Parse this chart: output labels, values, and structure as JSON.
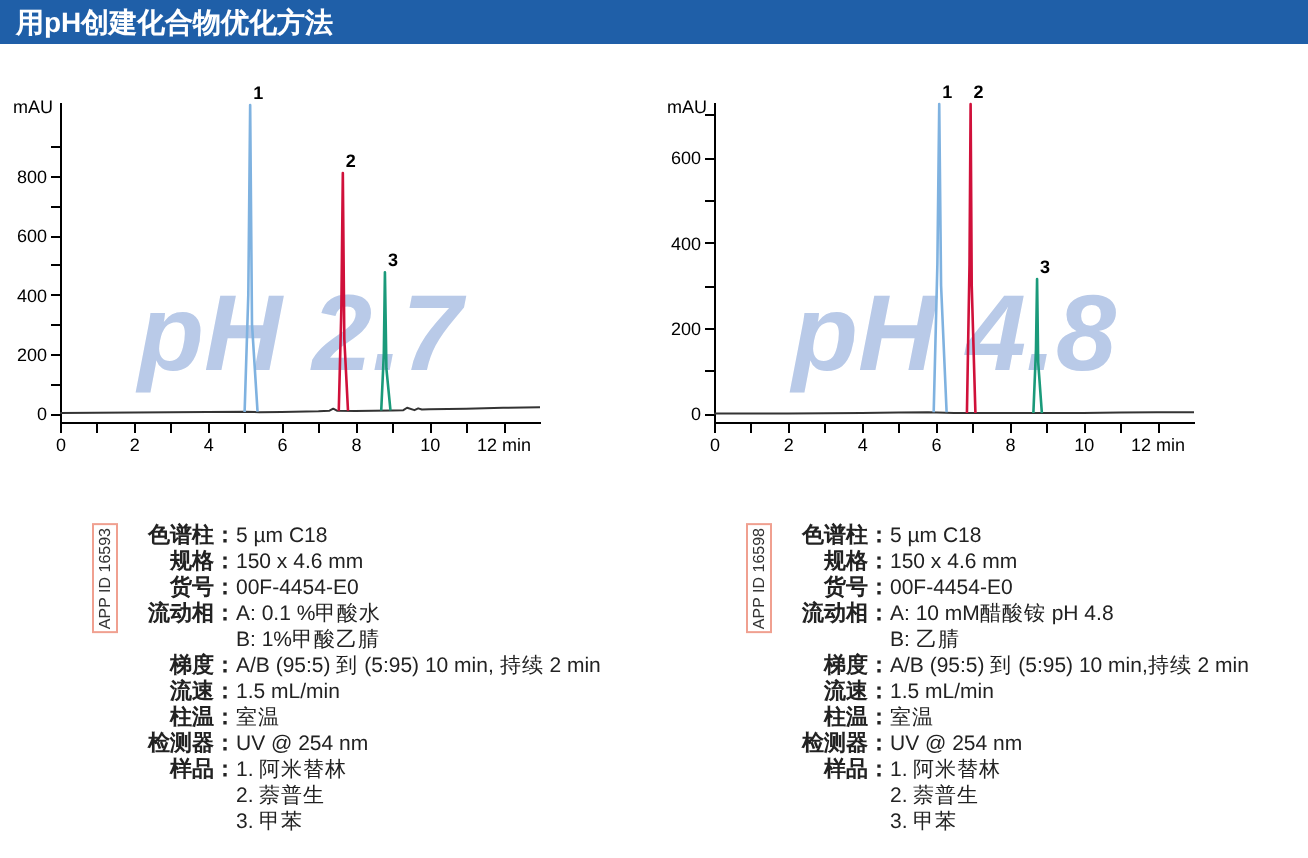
{
  "chart_data": [
    {
      "type": "line",
      "title": "用pH创建化合物优化方法",
      "ylabel": "mAU",
      "xlim": [
        0,
        13
      ],
      "ylim": [
        -30,
        1050
      ],
      "xticks": [
        0,
        {
          "value": 1,
          "label": null
        },
        2,
        {
          "value": 3,
          "label": null
        },
        4,
        {
          "value": 5,
          "label": null
        },
        6,
        {
          "value": 7,
          "label": null
        },
        8,
        {
          "value": 9,
          "label": null
        },
        10,
        {
          "value": 11,
          "label": null
        },
        {
          "value": 12,
          "label": "12 min"
        }
      ],
      "yticks": [
        0,
        {
          "value": 100,
          "label": null
        },
        200,
        {
          "value": 300,
          "label": null
        },
        400,
        {
          "value": 500,
          "label": null
        },
        600,
        {
          "value": 700,
          "label": null
        },
        800,
        {
          "value": 900,
          "label": null
        }
      ],
      "series": [
        {
          "color": "#333333",
          "x": [
            0,
            1,
            2,
            3,
            4,
            5,
            5.4,
            6,
            7,
            7.3,
            7.4,
            7.5,
            8,
            8.5,
            9,
            9.3,
            9.4,
            9.6,
            9.7,
            9.8,
            10,
            11,
            12,
            13
          ],
          "values": [
            0,
            1,
            2,
            3,
            4,
            5,
            3,
            4,
            6,
            8,
            15,
            8,
            7,
            8,
            9,
            10,
            18,
            10,
            16,
            12,
            13,
            15,
            18,
            20
          ]
        },
        {
          "color": "#7fb2e0",
          "x": [
            5.0,
            5.1,
            5.15,
            5.2,
            5.35
          ],
          "values": [
            4,
            400,
            1040,
            300,
            5
          ]
        },
        {
          "color": "#d0103a",
          "x": [
            7.55,
            7.62,
            7.66,
            7.7,
            7.8
          ],
          "values": [
            8,
            350,
            810,
            250,
            8
          ]
        },
        {
          "color": "#1a9a7a",
          "x": [
            8.7,
            8.77,
            8.8,
            8.84,
            8.95
          ],
          "values": [
            9,
            200,
            475,
            150,
            9
          ]
        }
      ],
      "annotations": [
        "pH 2.7",
        "APP ID 16593",
        "色谱柱：5 µm C18",
        "规格：150 x 4.6 mm",
        "货号：00F-4454-E0",
        "流动相：A: 0.1 %甲酸水",
        "B: 1%甲酸乙腈",
        "梯度：A/B (95:5) 到 (5:95) 10 min, 持续 2 min",
        "流速：1.5 mL/min",
        "柱温：室温",
        "检测器：UV @ 254 nm",
        "样品：1.   阿米替林",
        "2.   萘普生",
        "3.   甲苯",
        {
          "text": "1",
          "x": 5.15,
          "y": 1040
        },
        {
          "text": "2",
          "x": 7.66,
          "y": 810
        },
        {
          "text": "3",
          "x": 8.8,
          "y": 475
        }
      ]
    },
    {
      "type": "line",
      "ylabel": "mAU",
      "xlim": [
        0,
        13
      ],
      "ylim": [
        -20,
        730
      ],
      "xticks": [
        0,
        {
          "value": 1,
          "label": null
        },
        2,
        {
          "value": 3,
          "label": null
        },
        4,
        {
          "value": 5,
          "label": null
        },
        6,
        {
          "value": 7,
          "label": null
        },
        8,
        {
          "value": 9,
          "label": null
        },
        10,
        {
          "value": 11,
          "label": null
        },
        {
          "value": 12,
          "label": "12 min"
        }
      ],
      "yticks": [
        0,
        {
          "value": 100,
          "label": null
        },
        200,
        {
          "value": 300,
          "label": null
        },
        400,
        {
          "value": 500,
          "label": null
        },
        600,
        {
          "value": 700,
          "label": null
        }
      ],
      "series": [
        {
          "color": "#333333",
          "x": [
            0,
            2,
            4,
            5,
            5.8,
            6.5,
            7.5,
            8.5,
            9,
            10,
            11,
            12,
            13
          ],
          "values": [
            0,
            0,
            1,
            2,
            3,
            1,
            1,
            1,
            1,
            1,
            2,
            3,
            3
          ]
        },
        {
          "color": "#7fb2e0",
          "x": [
            5.95,
            6.05,
            6.1,
            6.15,
            6.3
          ],
          "values": [
            3,
            350,
            725,
            300,
            3
          ]
        },
        {
          "color": "#d0103a",
          "x": [
            6.85,
            6.92,
            6.95,
            6.98,
            7.08
          ],
          "values": [
            1,
            350,
            725,
            300,
            1
          ]
        },
        {
          "color": "#1a9a7a",
          "x": [
            8.65,
            8.72,
            8.75,
            8.78,
            8.88
          ],
          "values": [
            1,
            150,
            315,
            120,
            1
          ]
        }
      ],
      "annotations": [
        "pH 4.8",
        "APP ID 16598",
        "色谱柱：5 µm C18",
        "规格：150 x 4.6 mm",
        "货号：00F-4454-E0",
        "流动相：A: 10 mM醋酸铵 pH 4.8",
        "B: 乙腈",
        "梯度：A/B (95:5) 到 (5:95) 10 min,持续 2 min",
        "流速：1.5 mL/min",
        "柱温：室温",
        "检测器：UV @ 254 nm",
        "样品：1.   阿米替林",
        "2.   萘普生",
        "3.   甲苯",
        {
          "text": "1",
          "x": 6.1,
          "y": 725
        },
        {
          "text": "2",
          "x": 6.95,
          "y": 725
        },
        {
          "text": "3",
          "x": 8.75,
          "y": 315
        }
      ]
    }
  ]
}
